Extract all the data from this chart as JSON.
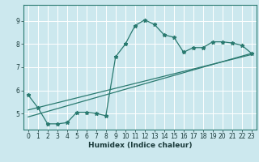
{
  "xlabel": "Humidex (Indice chaleur)",
  "bg_color": "#cce8ee",
  "grid_color": "#ffffff",
  "line_color": "#2a7a70",
  "xlim": [
    -0.5,
    23.5
  ],
  "ylim": [
    4.3,
    9.7
  ],
  "yticks": [
    5,
    6,
    7,
    8,
    9
  ],
  "xticks": [
    0,
    1,
    2,
    3,
    4,
    5,
    6,
    7,
    8,
    9,
    10,
    11,
    12,
    13,
    14,
    15,
    16,
    17,
    18,
    19,
    20,
    21,
    22,
    23
  ],
  "data_x": [
    0,
    1,
    2,
    3,
    4,
    5,
    6,
    7,
    8,
    9,
    10,
    11,
    12,
    13,
    14,
    15,
    16,
    17,
    18,
    19,
    20,
    21,
    22,
    23
  ],
  "data_y": [
    5.8,
    5.25,
    4.55,
    4.55,
    4.6,
    5.05,
    5.05,
    5.0,
    4.9,
    7.45,
    8.0,
    8.8,
    9.05,
    8.85,
    8.4,
    8.3,
    7.65,
    7.85,
    7.85,
    8.1,
    8.1,
    8.05,
    7.95,
    7.6
  ],
  "line1_x": [
    0,
    23
  ],
  "line1_y": [
    4.85,
    7.6
  ],
  "line2_x": [
    0,
    23
  ],
  "line2_y": [
    5.15,
    7.55
  ]
}
